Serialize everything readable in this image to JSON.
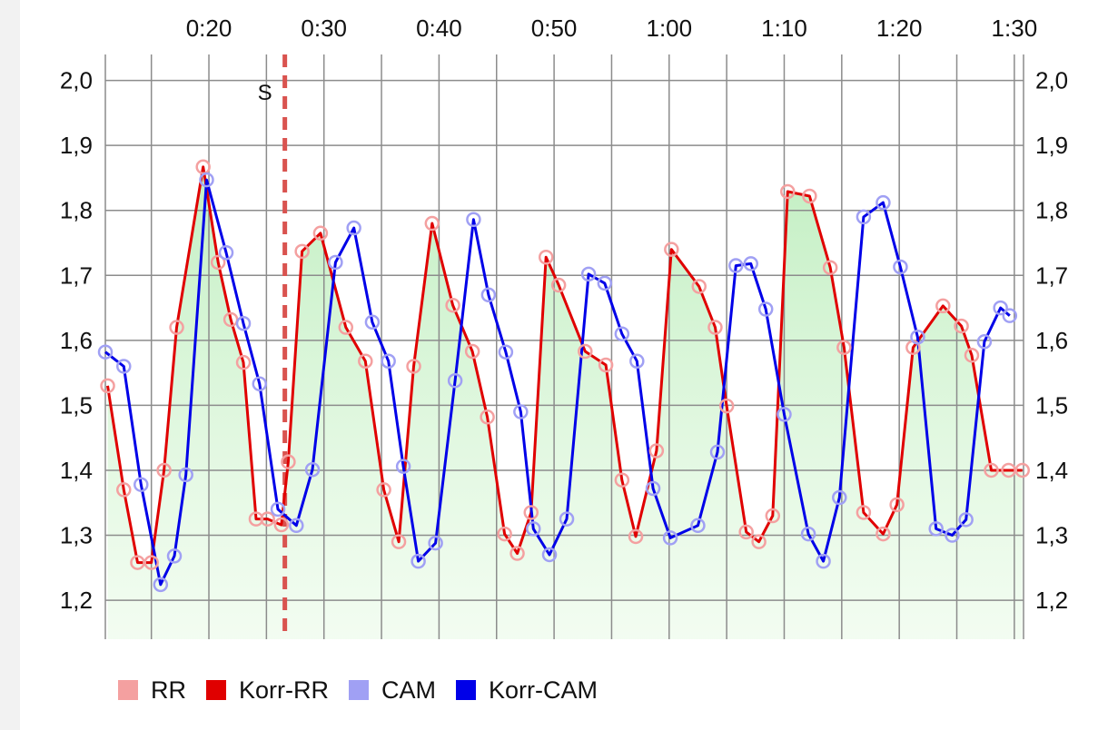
{
  "chart_data": {
    "type": "line",
    "x_unit": "seconds",
    "x_tick_labels": [
      {
        "value": 20,
        "label": "0:20"
      },
      {
        "value": 30,
        "label": "0:30"
      },
      {
        "value": 40,
        "label": "0:40"
      },
      {
        "value": 50,
        "label": "0:50"
      },
      {
        "value": 60,
        "label": "1:00"
      },
      {
        "value": 70,
        "label": "1:10"
      },
      {
        "value": 80,
        "label": "1:20"
      },
      {
        "value": 90,
        "label": "1:30"
      }
    ],
    "y_tick_labels": [
      {
        "value": 1.2,
        "label": "1,2"
      },
      {
        "value": 1.3,
        "label": "1,3"
      },
      {
        "value": 1.4,
        "label": "1,4"
      },
      {
        "value": 1.5,
        "label": "1,5"
      },
      {
        "value": 1.6,
        "label": "1,6"
      },
      {
        "value": 1.7,
        "label": "1,7"
      },
      {
        "value": 1.8,
        "label": "1,8"
      },
      {
        "value": 1.9,
        "label": "1,9"
      },
      {
        "value": 2.0,
        "label": "2,0"
      }
    ],
    "xlim": [
      11,
      90.8
    ],
    "ylim": [
      1.14,
      2.04
    ],
    "grid": true,
    "legend_position": "bottom-left",
    "marker": {
      "x": 26.6,
      "label": "S",
      "color": "#d9534f"
    },
    "legend": [
      {
        "label": "RR",
        "color": "#f4a0a0"
      },
      {
        "label": "Korr-RR",
        "color": "#e00000"
      },
      {
        "label": "CAM",
        "color": "#a0a0f4"
      },
      {
        "label": "Korr-CAM",
        "color": "#0000e8"
      }
    ],
    "series": [
      {
        "name": "RR",
        "style": "points",
        "color": "#f4a0a0",
        "x": [
          11.2,
          12.6,
          13.8,
          15.0,
          16.1,
          17.2,
          19.5,
          20.8,
          21.9,
          23.0,
          24.1,
          25.1,
          26.3,
          26.9,
          28.1,
          29.7,
          31.9,
          33.6,
          35.2,
          36.5,
          37.8,
          39.4,
          41.2,
          42.9,
          44.2,
          45.7,
          46.8,
          48.0,
          49.3,
          50.4,
          52.7,
          54.5,
          55.9,
          57.1,
          58.9,
          60.2,
          62.6,
          64.0,
          65.0,
          66.7,
          67.8,
          69.0,
          70.3,
          72.2,
          74.0,
          75.2,
          76.9,
          78.6,
          79.8,
          81.2,
          83.8,
          85.4,
          86.3,
          88.0,
          89.5,
          90.7
        ],
        "y": [
          1.53,
          1.37,
          1.258,
          1.258,
          1.4,
          1.62,
          1.867,
          1.72,
          1.632,
          1.566,
          1.325,
          1.325,
          1.316,
          1.413,
          1.737,
          1.765,
          1.62,
          1.568,
          1.37,
          1.29,
          1.56,
          1.78,
          1.654,
          1.583,
          1.482,
          1.302,
          1.272,
          1.335,
          1.728,
          1.685,
          1.583,
          1.562,
          1.385,
          1.298,
          1.43,
          1.74,
          1.683,
          1.62,
          1.499,
          1.305,
          1.29,
          1.33,
          1.829,
          1.822,
          1.712,
          1.589,
          1.335,
          1.302,
          1.347,
          1.589,
          1.653,
          1.622,
          1.577,
          1.4,
          1.4,
          1.4
        ]
      },
      {
        "name": "Korr-RR",
        "style": "line",
        "color": "#e00000",
        "x": [
          11.2,
          12.6,
          13.8,
          15.0,
          16.1,
          17.2,
          19.5,
          20.8,
          21.9,
          23.0,
          24.1,
          25.1,
          26.3,
          26.9,
          28.1,
          29.7,
          31.9,
          33.6,
          35.2,
          36.5,
          37.8,
          39.4,
          41.2,
          42.9,
          44.2,
          45.7,
          46.8,
          48.0,
          49.3,
          50.4,
          52.7,
          54.5,
          55.9,
          57.1,
          58.9,
          60.2,
          62.6,
          64.0,
          65.0,
          66.7,
          67.8,
          69.0,
          70.3,
          72.2,
          74.0,
          75.2,
          76.9,
          78.6,
          79.8,
          81.2,
          83.8,
          85.4,
          86.3,
          88.0,
          89.5,
          90.7
        ],
        "y": [
          1.53,
          1.37,
          1.258,
          1.258,
          1.4,
          1.62,
          1.867,
          1.72,
          1.632,
          1.566,
          1.325,
          1.325,
          1.316,
          1.413,
          1.737,
          1.765,
          1.62,
          1.568,
          1.37,
          1.29,
          1.56,
          1.78,
          1.654,
          1.583,
          1.482,
          1.302,
          1.272,
          1.335,
          1.728,
          1.685,
          1.583,
          1.562,
          1.385,
          1.298,
          1.43,
          1.74,
          1.683,
          1.62,
          1.499,
          1.305,
          1.29,
          1.33,
          1.829,
          1.822,
          1.712,
          1.589,
          1.335,
          1.302,
          1.347,
          1.589,
          1.653,
          1.622,
          1.577,
          1.4,
          1.4,
          1.4
        ]
      },
      {
        "name": "CAM",
        "style": "points",
        "color": "#a0a0f4",
        "x": [
          11.0,
          12.6,
          14.1,
          15.8,
          17.0,
          18.0,
          19.8,
          21.5,
          23.0,
          24.4,
          26.0,
          27.6,
          29.0,
          31.0,
          32.6,
          34.2,
          35.6,
          36.9,
          38.2,
          39.7,
          41.4,
          43.0,
          44.3,
          45.8,
          47.1,
          48.2,
          49.6,
          51.1,
          53.0,
          54.4,
          55.9,
          57.2,
          58.6,
          60.1,
          62.5,
          64.2,
          65.8,
          67.1,
          68.4,
          70.0,
          72.1,
          73.4,
          74.8,
          76.9,
          78.6,
          80.1,
          81.6,
          83.2,
          84.6,
          85.8,
          87.4,
          88.8,
          89.6
        ],
        "y": [
          1.582,
          1.56,
          1.378,
          1.224,
          1.268,
          1.393,
          1.847,
          1.735,
          1.626,
          1.533,
          1.34,
          1.315,
          1.401,
          1.72,
          1.773,
          1.628,
          1.568,
          1.406,
          1.26,
          1.288,
          1.538,
          1.786,
          1.67,
          1.582,
          1.49,
          1.31,
          1.27,
          1.325,
          1.702,
          1.688,
          1.61,
          1.568,
          1.372,
          1.296,
          1.315,
          1.428,
          1.715,
          1.718,
          1.648,
          1.486,
          1.302,
          1.26,
          1.358,
          1.79,
          1.812,
          1.713,
          1.605,
          1.31,
          1.3,
          1.324,
          1.598,
          1.65,
          1.638
        ]
      },
      {
        "name": "Korr-CAM",
        "style": "line",
        "color": "#0000e8",
        "x": [
          11.0,
          12.6,
          14.1,
          15.8,
          17.0,
          18.0,
          19.8,
          21.5,
          23.0,
          24.4,
          26.0,
          27.6,
          29.0,
          31.0,
          32.6,
          34.2,
          35.6,
          36.9,
          38.2,
          39.7,
          41.4,
          43.0,
          44.3,
          45.8,
          47.1,
          48.2,
          49.6,
          51.1,
          53.0,
          54.4,
          55.9,
          57.2,
          58.6,
          60.1,
          62.5,
          64.2,
          65.8,
          67.1,
          68.4,
          70.0,
          72.1,
          73.4,
          74.8,
          76.9,
          78.6,
          80.1,
          81.6,
          83.2,
          84.6,
          85.8,
          87.4,
          88.8,
          89.6
        ],
        "y": [
          1.582,
          1.56,
          1.378,
          1.224,
          1.268,
          1.393,
          1.847,
          1.735,
          1.626,
          1.533,
          1.34,
          1.315,
          1.401,
          1.72,
          1.773,
          1.628,
          1.568,
          1.406,
          1.26,
          1.288,
          1.538,
          1.786,
          1.67,
          1.582,
          1.49,
          1.31,
          1.27,
          1.325,
          1.702,
          1.688,
          1.61,
          1.568,
          1.372,
          1.296,
          1.315,
          1.428,
          1.715,
          1.718,
          1.648,
          1.486,
          1.302,
          1.26,
          1.358,
          1.79,
          1.812,
          1.713,
          1.605,
          1.31,
          1.3,
          1.324,
          1.598,
          1.65,
          1.638
        ]
      }
    ]
  }
}
